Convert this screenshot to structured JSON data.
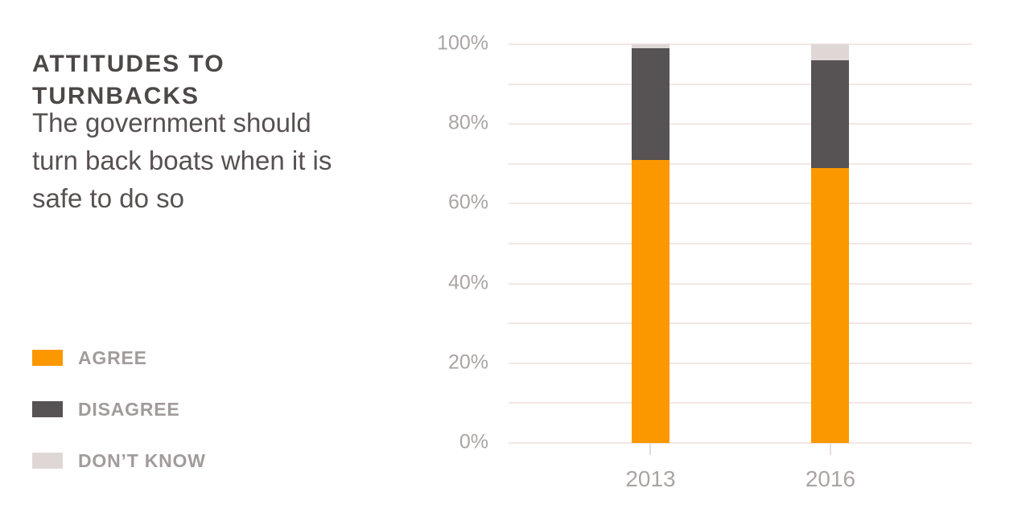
{
  "header": {
    "title_lines": [
      "ATTITUDES TO",
      "TURNBACKS"
    ],
    "subtitle_lines": [
      "The government should",
      "turn back boats when it is",
      "safe to do so"
    ]
  },
  "legend": {
    "items": [
      {
        "label": "AGREE",
        "color": "#FB9800"
      },
      {
        "label": "DISAGREE",
        "color": "#575253"
      },
      {
        "label": "DON’T KNOW",
        "color": "#DFD7D5"
      }
    ]
  },
  "chart_data": {
    "type": "bar",
    "variant": "stacked-column",
    "title": "ATTITUDES TO TURNBACKS",
    "subtitle": "The government should turn back boats when it is safe to do so",
    "categories": [
      "2013",
      "2016"
    ],
    "series": [
      {
        "name": "AGREE",
        "color": "#FB9800",
        "values": [
          71,
          69
        ]
      },
      {
        "name": "DISAGREE",
        "color": "#575253",
        "values": [
          28,
          27
        ]
      },
      {
        "name": "DON’T KNOW",
        "color": "#DFD7D5",
        "values": [
          1,
          4
        ]
      }
    ],
    "ylim": [
      0,
      100
    ],
    "yticks_labeled": [
      0,
      20,
      40,
      60,
      80,
      100
    ],
    "ytick_suffix": "%",
    "gridline_interval": 10,
    "grid": true,
    "legend_position": "bottom-left"
  },
  "colors": {
    "background": "#FFFFFF",
    "gridline": "#F2E7E5",
    "axis_text": "#ACA4A4",
    "legend_text": "#A29B9B",
    "title_text": "#4D4848",
    "subtitle_text": "#575151",
    "tick_mark": "#E8DDDC"
  }
}
